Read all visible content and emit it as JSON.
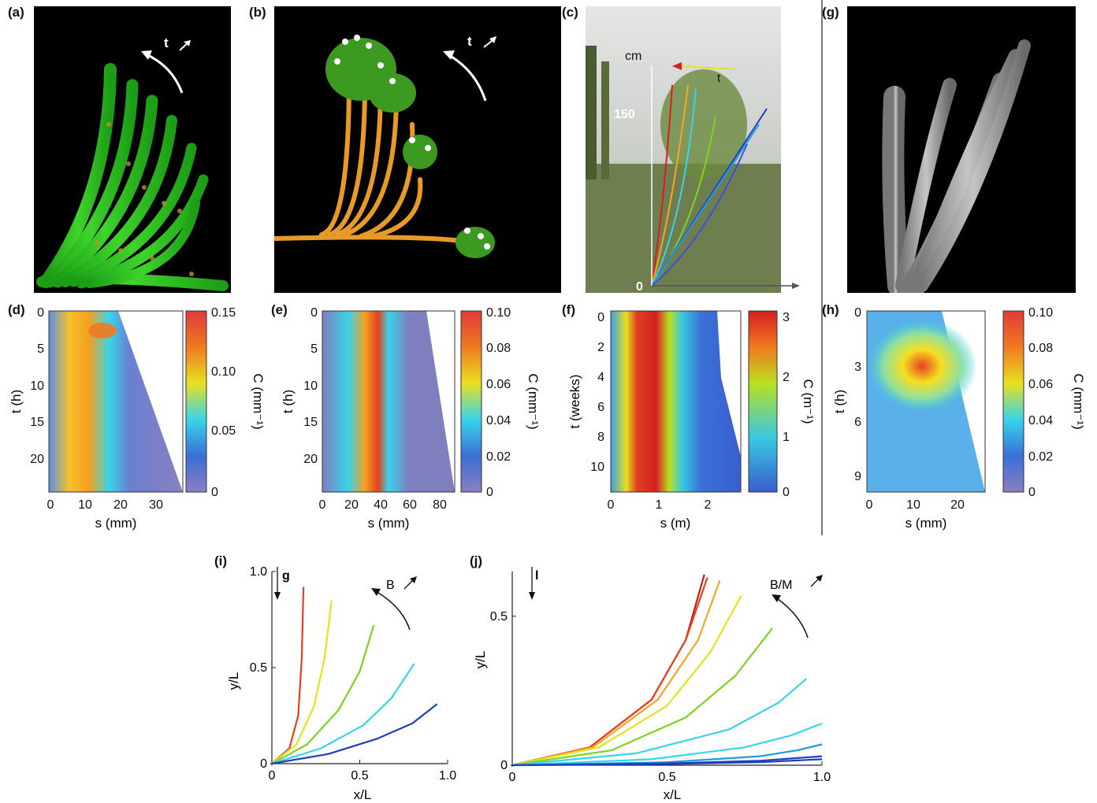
{
  "labels": {
    "a": "(a)",
    "b": "(b)",
    "c": "(c)",
    "d": "(d)",
    "e": "(e)",
    "f": "(f)",
    "g": "(g)",
    "h": "(h)",
    "i": "(i)",
    "j": "(j)"
  },
  "photos": {
    "a": {
      "arrow_label": "t"
    },
    "b": {
      "arrow_label": "t"
    },
    "c": {
      "unit": "cm",
      "tick_150": "150",
      "tick_0": "0",
      "arrow_label": "t"
    }
  },
  "heatmaps": {
    "d": {
      "ylabel": "t (h)",
      "xlabel": "s (mm)",
      "yticks": [
        "0",
        "5",
        "10",
        "15",
        "20"
      ],
      "xticks": [
        "0",
        "10",
        "20",
        "30"
      ],
      "cbar_label": "C (mm⁻¹)",
      "cbar_ticks": [
        "0.15",
        "0.10",
        "0.05",
        "0"
      ]
    },
    "e": {
      "ylabel": "t (h)",
      "xlabel": "s (mm)",
      "yticks": [
        "0",
        "5",
        "10",
        "15",
        "20"
      ],
      "xticks": [
        "0",
        "20",
        "40",
        "60",
        "80"
      ],
      "cbar_label": "C (mm⁻¹)",
      "cbar_ticks": [
        "0.10",
        "0.08",
        "0.06",
        "0.04",
        "0.02",
        "0"
      ]
    },
    "f": {
      "ylabel": "t (weeks)",
      "xlabel": "s (m)",
      "yticks": [
        "0",
        "2",
        "4",
        "6",
        "8",
        "10"
      ],
      "xticks": [
        "0",
        "1",
        "2"
      ],
      "cbar_label": "C (m⁻¹)",
      "cbar_ticks": [
        "3",
        "2",
        "1",
        "0"
      ]
    },
    "h": {
      "ylabel": "t (h)",
      "xlabel": "s (mm)",
      "yticks": [
        "0",
        "3",
        "6",
        "9"
      ],
      "xticks": [
        "0",
        "10",
        "20"
      ],
      "cbar_label": "C (mm⁻¹)",
      "cbar_ticks": [
        "0.10",
        "0.08",
        "0.06",
        "0.04",
        "0.02",
        "0"
      ]
    }
  },
  "chart_data": [
    {
      "type": "line",
      "panel": "i",
      "xlabel": "x/L",
      "ylabel": "y/L",
      "xlim": [
        0,
        1
      ],
      "ylim": [
        0,
        1
      ],
      "xticks": [
        "0",
        "0.5",
        "1.0"
      ],
      "yticks": [
        "0",
        "0.5",
        "1.0"
      ],
      "gravity_label": "g",
      "arrow_label": "B",
      "series": [
        {
          "color": "#e8401c",
          "x": [
            0.0,
            0.1,
            0.15,
            0.17,
            0.18
          ],
          "y": [
            0.0,
            0.08,
            0.25,
            0.55,
            0.92
          ]
        },
        {
          "color": "#e8e020",
          "x": [
            0.0,
            0.14,
            0.24,
            0.3,
            0.34
          ],
          "y": [
            0.0,
            0.1,
            0.3,
            0.55,
            0.85
          ]
        },
        {
          "color": "#7ed321",
          "x": [
            0.0,
            0.2,
            0.38,
            0.5,
            0.58
          ],
          "y": [
            0.0,
            0.1,
            0.28,
            0.48,
            0.72
          ]
        },
        {
          "color": "#38d4e8",
          "x": [
            0.0,
            0.28,
            0.52,
            0.68,
            0.81
          ],
          "y": [
            0.0,
            0.08,
            0.2,
            0.34,
            0.52
          ]
        },
        {
          "color": "#1f3fbf",
          "x": [
            0.0,
            0.32,
            0.6,
            0.8,
            0.94
          ],
          "y": [
            0.0,
            0.05,
            0.13,
            0.21,
            0.31
          ]
        }
      ]
    },
    {
      "type": "line",
      "panel": "j",
      "xlabel": "x/L",
      "ylabel": "y/L",
      "xlim": [
        0,
        1
      ],
      "ylim": [
        0,
        0.65
      ],
      "xticks": [
        "0",
        "0.5",
        "1.0"
      ],
      "yticks": [
        "0",
        "0.5"
      ],
      "gravity_label": "l",
      "arrow_label": "B/M",
      "series": [
        {
          "color": "#c81e14",
          "x": [
            0.0,
            0.25,
            0.45,
            0.56,
            0.62
          ],
          "y": [
            0.0,
            0.06,
            0.22,
            0.42,
            0.64
          ]
        },
        {
          "color": "#e8401c",
          "x": [
            0.0,
            0.25,
            0.45,
            0.56,
            0.63
          ],
          "y": [
            0.0,
            0.06,
            0.22,
            0.42,
            0.63
          ]
        },
        {
          "color": "#f5a623",
          "x": [
            0.0,
            0.26,
            0.47,
            0.6,
            0.67
          ],
          "y": [
            0.0,
            0.06,
            0.22,
            0.42,
            0.62
          ]
        },
        {
          "color": "#e8e020",
          "x": [
            0.0,
            0.28,
            0.5,
            0.64,
            0.74
          ],
          "y": [
            0.0,
            0.06,
            0.2,
            0.38,
            0.57
          ]
        },
        {
          "color": "#7ed321",
          "x": [
            0.0,
            0.32,
            0.56,
            0.72,
            0.84
          ],
          "y": [
            0.0,
            0.05,
            0.16,
            0.3,
            0.46
          ]
        },
        {
          "color": "#38d4e8",
          "x": [
            0.0,
            0.4,
            0.7,
            0.86,
            0.95
          ],
          "y": [
            0.0,
            0.04,
            0.12,
            0.21,
            0.29
          ]
        },
        {
          "color": "#38d4e8",
          "x": [
            0.0,
            0.45,
            0.75,
            0.9,
            1.0
          ],
          "y": [
            0.0,
            0.02,
            0.06,
            0.1,
            0.14
          ]
        },
        {
          "color": "#1f9be0",
          "x": [
            0.0,
            0.5,
            0.8,
            0.92,
            1.0
          ],
          "y": [
            0.0,
            0.01,
            0.03,
            0.05,
            0.07
          ]
        },
        {
          "color": "#1f3fbf",
          "x": [
            0.0,
            0.5,
            0.8,
            1.0
          ],
          "y": [
            0.0,
            0.006,
            0.015,
            0.03
          ]
        },
        {
          "color": "#1f3fbf",
          "x": [
            0.0,
            0.5,
            0.8,
            1.0
          ],
          "y": [
            0.0,
            0.004,
            0.01,
            0.02
          ]
        }
      ]
    }
  ]
}
